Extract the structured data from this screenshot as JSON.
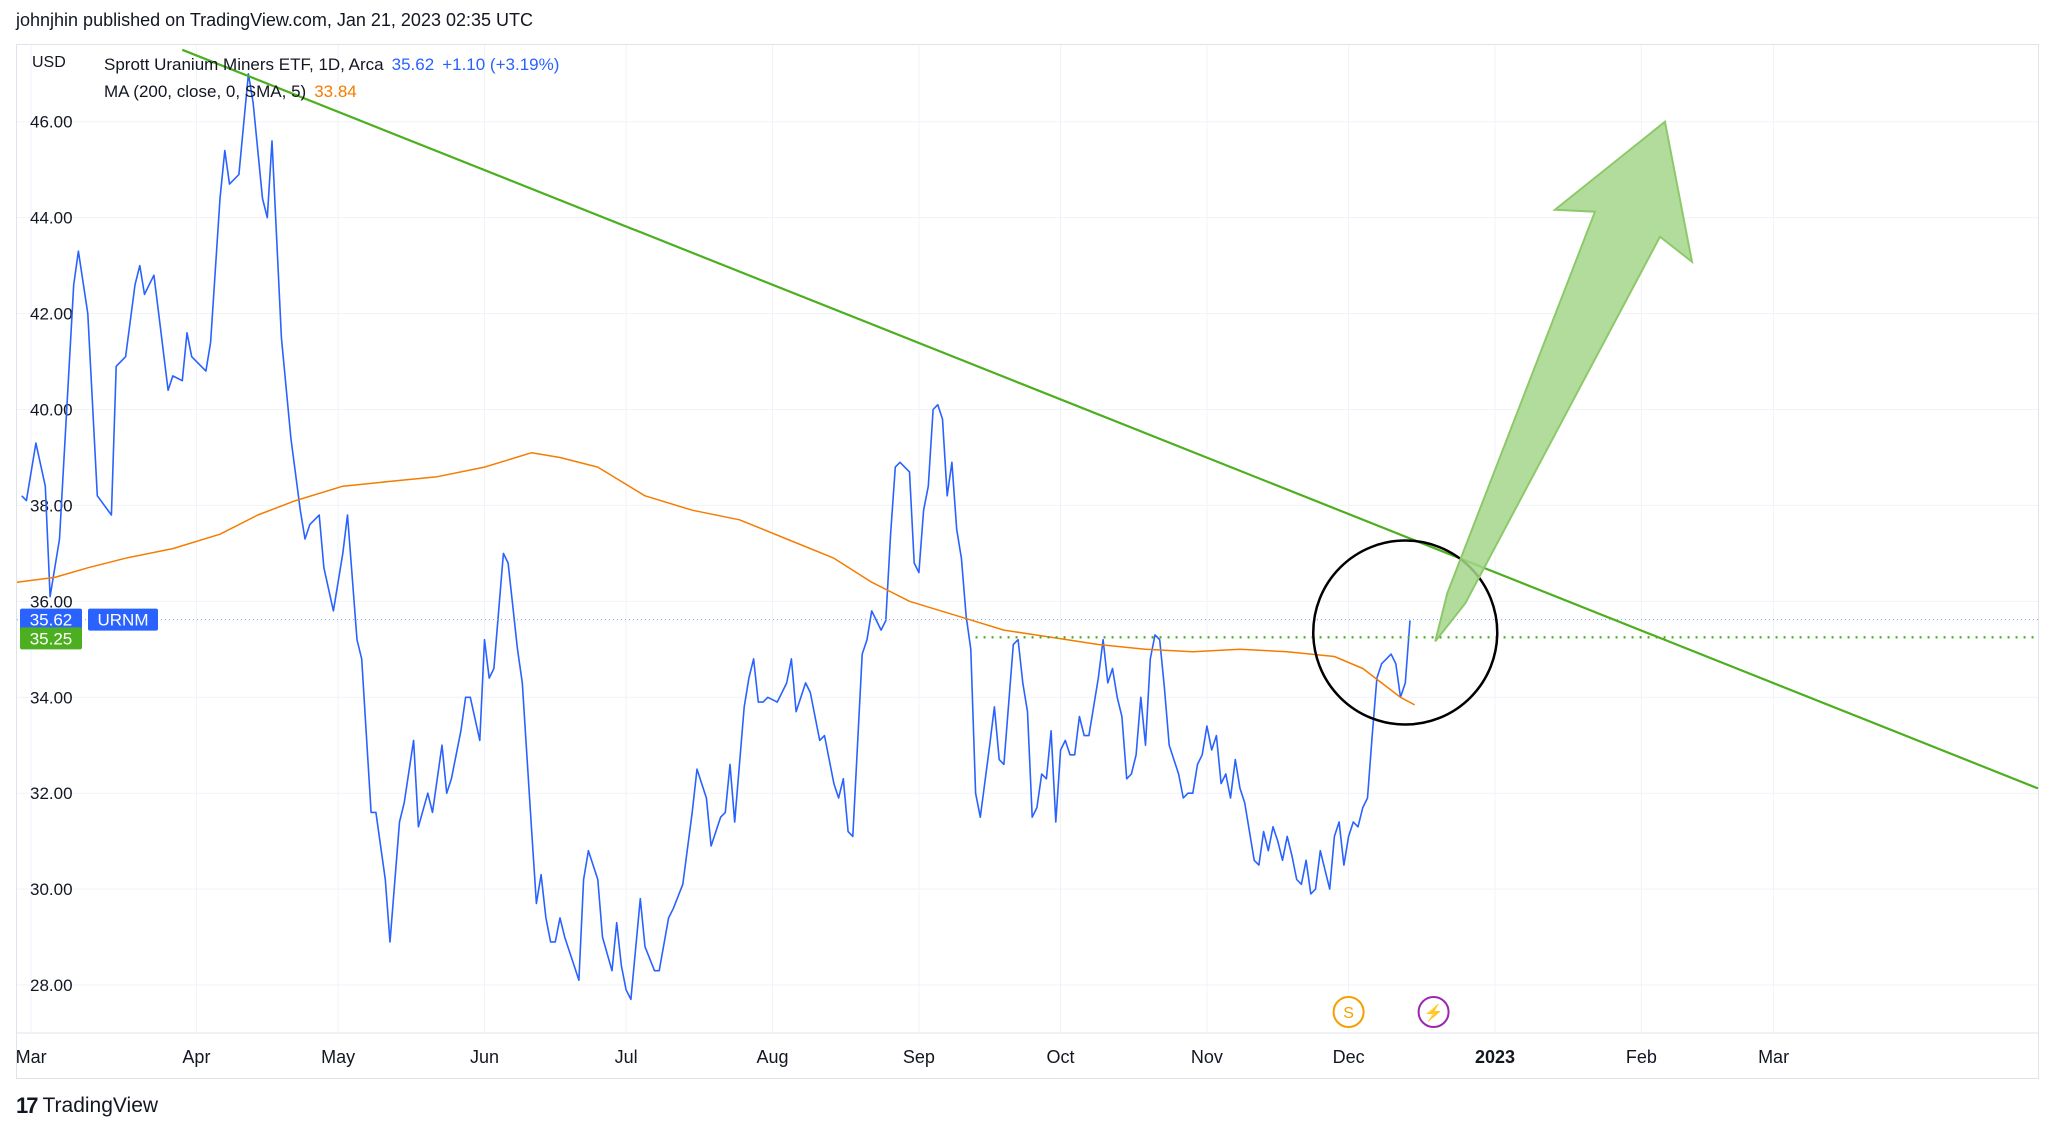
{
  "header": {
    "published_text": "johnjhin published on TradingView.com, Jan 21, 2023 02:35 UTC"
  },
  "footer": {
    "brand": "TradingView",
    "logo_icon": "tradingview-logo-icon"
  },
  "legend": {
    "currency": "USD",
    "symbol_line": "Sprott Uranium Miners ETF, 1D, Arca",
    "last_price": "35.62",
    "change": "+1.10 (+3.19%)",
    "ma_line": "MA (200, close, 0, SMA, 5)",
    "ma_value": "33.84"
  },
  "colors": {
    "price_line": "#2962ff",
    "ma_line": "#f57c00",
    "trendline": "#4caf1f",
    "arrow_fill": "#a5d68a",
    "grid": "#f0f3fa",
    "circle": "#000000",
    "price_badge": "#2962ff",
    "support_badge": "#4caf1f"
  },
  "chart_data": {
    "type": "line",
    "title": "Sprott Uranium Miners ETF, 1D, Arca",
    "xlabel": "",
    "ylabel": "USD",
    "ylim": [
      27.0,
      47.6
    ],
    "x_range_days": [
      -3,
      425
    ],
    "y_ticks": [
      "28.00",
      "30.00",
      "32.00",
      "34.00",
      "36.00",
      "38.00",
      "40.00",
      "42.00",
      "44.00",
      "46.00"
    ],
    "y_tick_values": [
      28,
      30,
      32,
      34,
      36,
      38,
      40,
      42,
      44,
      46
    ],
    "x_ticks": [
      {
        "label": "Mar",
        "day": 0
      },
      {
        "label": "Apr",
        "day": 35
      },
      {
        "label": "May",
        "day": 65
      },
      {
        "label": "Jun",
        "day": 96
      },
      {
        "label": "Jul",
        "day": 126
      },
      {
        "label": "Aug",
        "day": 157
      },
      {
        "label": "Sep",
        "day": 188
      },
      {
        "label": "Oct",
        "day": 218
      },
      {
        "label": "Nov",
        "day": 249
      },
      {
        "label": "Dec",
        "day": 279
      },
      {
        "label": "2023",
        "day": 310
      },
      {
        "label": "Feb",
        "day": 341
      },
      {
        "label": "Mar",
        "day": 369
      }
    ],
    "series": [
      {
        "name": "URNM",
        "color": "#2962ff",
        "points": [
          [
            -2,
            38.2
          ],
          [
            -1,
            38.1
          ],
          [
            1,
            39.3
          ],
          [
            3,
            38.4
          ],
          [
            4,
            36.1
          ],
          [
            6,
            37.3
          ],
          [
            9,
            42.6
          ],
          [
            10,
            43.3
          ],
          [
            12,
            42.0
          ],
          [
            14,
            38.2
          ],
          [
            17,
            37.8
          ],
          [
            18,
            40.9
          ],
          [
            20,
            41.1
          ],
          [
            22,
            42.6
          ],
          [
            23,
            43.0
          ],
          [
            24,
            42.4
          ],
          [
            26,
            42.8
          ],
          [
            27,
            42.0
          ],
          [
            29,
            40.4
          ],
          [
            30,
            40.7
          ],
          [
            32,
            40.6
          ],
          [
            33,
            41.6
          ],
          [
            34,
            41.1
          ],
          [
            37,
            40.8
          ],
          [
            38,
            41.4
          ],
          [
            40,
            44.4
          ],
          [
            41,
            45.4
          ],
          [
            42,
            44.7
          ],
          [
            44,
            44.9
          ],
          [
            46,
            47.0
          ],
          [
            47,
            46.4
          ],
          [
            49,
            44.4
          ],
          [
            50,
            44.0
          ],
          [
            51,
            45.6
          ],
          [
            53,
            41.5
          ],
          [
            55,
            39.4
          ],
          [
            57,
            37.9
          ],
          [
            58,
            37.3
          ],
          [
            59,
            37.6
          ],
          [
            60,
            37.7
          ],
          [
            61,
            37.8
          ],
          [
            62,
            36.7
          ],
          [
            64,
            35.8
          ],
          [
            66,
            37.0
          ],
          [
            67,
            37.8
          ],
          [
            69,
            35.2
          ],
          [
            70,
            34.8
          ],
          [
            72,
            31.6
          ],
          [
            73,
            31.6
          ],
          [
            75,
            30.2
          ],
          [
            76,
            28.9
          ],
          [
            78,
            31.4
          ],
          [
            79,
            31.8
          ],
          [
            81,
            33.1
          ],
          [
            82,
            31.3
          ],
          [
            84,
            32.0
          ],
          [
            85,
            31.6
          ],
          [
            87,
            33.0
          ],
          [
            88,
            32.0
          ],
          [
            89,
            32.3
          ],
          [
            91,
            33.3
          ],
          [
            92,
            34.0
          ],
          [
            93,
            34.0
          ],
          [
            95,
            33.1
          ],
          [
            96,
            35.2
          ],
          [
            97,
            34.4
          ],
          [
            98,
            34.6
          ],
          [
            100,
            37.0
          ],
          [
            101,
            36.8
          ],
          [
            103,
            35.0
          ],
          [
            104,
            34.3
          ],
          [
            106,
            31.2
          ],
          [
            107,
            29.7
          ],
          [
            108,
            30.3
          ],
          [
            109,
            29.4
          ],
          [
            110,
            28.9
          ],
          [
            111,
            28.9
          ],
          [
            112,
            29.4
          ],
          [
            113,
            29.0
          ],
          [
            115,
            28.4
          ],
          [
            116,
            28.1
          ],
          [
            117,
            30.2
          ],
          [
            118,
            30.8
          ],
          [
            120,
            30.2
          ],
          [
            121,
            29.0
          ],
          [
            123,
            28.3
          ],
          [
            124,
            29.3
          ],
          [
            125,
            28.4
          ],
          [
            126,
            27.9
          ],
          [
            127,
            27.7
          ],
          [
            129,
            29.8
          ],
          [
            130,
            28.8
          ],
          [
            132,
            28.3
          ],
          [
            133,
            28.3
          ],
          [
            135,
            29.4
          ],
          [
            136,
            29.6
          ],
          [
            138,
            30.1
          ],
          [
            140,
            31.6
          ],
          [
            141,
            32.5
          ],
          [
            143,
            31.9
          ],
          [
            144,
            30.9
          ],
          [
            146,
            31.5
          ],
          [
            147,
            31.6
          ],
          [
            148,
            32.6
          ],
          [
            149,
            31.4
          ],
          [
            151,
            33.8
          ],
          [
            152,
            34.4
          ],
          [
            153,
            34.8
          ],
          [
            154,
            33.9
          ],
          [
            155,
            33.9
          ],
          [
            156,
            34.0
          ],
          [
            158,
            33.9
          ],
          [
            159,
            34.1
          ],
          [
            160,
            34.3
          ],
          [
            161,
            34.8
          ],
          [
            162,
            33.7
          ],
          [
            164,
            34.3
          ],
          [
            165,
            34.1
          ],
          [
            167,
            33.1
          ],
          [
            168,
            33.2
          ],
          [
            170,
            32.2
          ],
          [
            171,
            31.9
          ],
          [
            172,
            32.3
          ],
          [
            173,
            31.2
          ],
          [
            174,
            31.1
          ],
          [
            176,
            34.9
          ],
          [
            177,
            35.2
          ],
          [
            178,
            35.8
          ],
          [
            180,
            35.4
          ],
          [
            181,
            35.6
          ],
          [
            182,
            37.4
          ],
          [
            183,
            38.8
          ],
          [
            184,
            38.9
          ],
          [
            186,
            38.7
          ],
          [
            187,
            36.8
          ],
          [
            188,
            36.6
          ],
          [
            189,
            37.9
          ],
          [
            190,
            38.4
          ],
          [
            191,
            40.0
          ],
          [
            192,
            40.1
          ],
          [
            193,
            39.8
          ],
          [
            194,
            38.2
          ],
          [
            195,
            38.9
          ],
          [
            196,
            37.5
          ],
          [
            197,
            36.9
          ],
          [
            198,
            35.7
          ],
          [
            199,
            35.0
          ],
          [
            200,
            32.0
          ],
          [
            201,
            31.5
          ],
          [
            203,
            33.0
          ],
          [
            204,
            33.8
          ],
          [
            205,
            32.7
          ],
          [
            206,
            32.6
          ],
          [
            208,
            35.1
          ],
          [
            209,
            35.2
          ],
          [
            210,
            34.3
          ],
          [
            211,
            33.7
          ],
          [
            212,
            31.5
          ],
          [
            213,
            31.7
          ],
          [
            214,
            32.4
          ],
          [
            215,
            32.3
          ],
          [
            216,
            33.3
          ],
          [
            217,
            31.4
          ],
          [
            218,
            32.9
          ],
          [
            219,
            33.1
          ],
          [
            220,
            32.8
          ],
          [
            221,
            32.8
          ],
          [
            222,
            33.6
          ],
          [
            223,
            33.2
          ],
          [
            224,
            33.2
          ],
          [
            225,
            33.8
          ],
          [
            226,
            34.4
          ],
          [
            227,
            35.2
          ],
          [
            228,
            34.3
          ],
          [
            229,
            34.6
          ],
          [
            230,
            34.0
          ],
          [
            231,
            33.6
          ],
          [
            232,
            32.3
          ],
          [
            233,
            32.4
          ],
          [
            234,
            32.8
          ],
          [
            235,
            34.0
          ],
          [
            236,
            33.0
          ],
          [
            237,
            34.8
          ],
          [
            238,
            35.3
          ],
          [
            239,
            35.2
          ],
          [
            240,
            34.2
          ],
          [
            241,
            33.0
          ],
          [
            243,
            32.4
          ],
          [
            244,
            31.9
          ],
          [
            245,
            32.0
          ],
          [
            246,
            32.0
          ],
          [
            247,
            32.6
          ],
          [
            248,
            32.8
          ],
          [
            249,
            33.4
          ],
          [
            250,
            32.9
          ],
          [
            251,
            33.2
          ],
          [
            252,
            32.2
          ],
          [
            253,
            32.4
          ],
          [
            254,
            31.9
          ],
          [
            255,
            32.7
          ],
          [
            256,
            32.1
          ],
          [
            257,
            31.8
          ],
          [
            259,
            30.6
          ],
          [
            260,
            30.5
          ],
          [
            261,
            31.2
          ],
          [
            262,
            30.8
          ],
          [
            263,
            31.3
          ],
          [
            264,
            31.0
          ],
          [
            265,
            30.6
          ],
          [
            266,
            31.1
          ],
          [
            267,
            30.7
          ],
          [
            268,
            30.2
          ],
          [
            269,
            30.1
          ],
          [
            270,
            30.6
          ],
          [
            271,
            29.9
          ],
          [
            272,
            30.0
          ],
          [
            273,
            30.8
          ],
          [
            274,
            30.4
          ],
          [
            275,
            30.0
          ],
          [
            276,
            31.1
          ],
          [
            277,
            31.4
          ],
          [
            278,
            30.5
          ],
          [
            279,
            31.1
          ],
          [
            280,
            31.4
          ],
          [
            281,
            31.3
          ],
          [
            282,
            31.7
          ],
          [
            283,
            31.9
          ],
          [
            284,
            33.2
          ],
          [
            285,
            34.4
          ],
          [
            286,
            34.7
          ],
          [
            287,
            34.8
          ],
          [
            288,
            34.9
          ],
          [
            289,
            34.7
          ],
          [
            290,
            34.0
          ],
          [
            291,
            34.3
          ],
          [
            292,
            35.6
          ]
        ]
      },
      {
        "name": "MA (200, close, 0, SMA, 5)",
        "color": "#f57c00",
        "points": [
          [
            -3,
            36.4
          ],
          [
            5,
            36.5
          ],
          [
            12,
            36.7
          ],
          [
            20,
            36.9
          ],
          [
            30,
            37.1
          ],
          [
            40,
            37.4
          ],
          [
            48,
            37.8
          ],
          [
            56,
            38.1
          ],
          [
            66,
            38.4
          ],
          [
            76,
            38.5
          ],
          [
            86,
            38.6
          ],
          [
            96,
            38.8
          ],
          [
            106,
            39.1
          ],
          [
            112,
            39.0
          ],
          [
            120,
            38.8
          ],
          [
            130,
            38.2
          ],
          [
            140,
            37.9
          ],
          [
            150,
            37.7
          ],
          [
            160,
            37.3
          ],
          [
            170,
            36.9
          ],
          [
            178,
            36.4
          ],
          [
            186,
            36.0
          ],
          [
            196,
            35.7
          ],
          [
            206,
            35.4
          ],
          [
            216,
            35.25
          ],
          [
            226,
            35.1
          ],
          [
            236,
            35.0
          ],
          [
            246,
            34.95
          ],
          [
            256,
            35.0
          ],
          [
            266,
            34.95
          ],
          [
            276,
            34.85
          ],
          [
            282,
            34.6
          ],
          [
            286,
            34.3
          ],
          [
            290,
            34.0
          ],
          [
            293,
            33.84
          ]
        ]
      }
    ],
    "trendline": {
      "from": [
        32,
        47.5
      ],
      "to": [
        425,
        32.1
      ]
    },
    "support_line": {
      "from_day": 200,
      "to_day": 425,
      "value": 35.25
    },
    "last_price_marker": {
      "label": "URNM",
      "value": 35.62
    },
    "support_marker": {
      "value": 35.25
    },
    "annotation_circle": {
      "center_day": 291,
      "center_value": 35.35,
      "note": "breakout highlight"
    },
    "arrow": {
      "tail_day": 291,
      "tail_value": 36,
      "head_day": 346,
      "head_value": 46,
      "direction": "up"
    },
    "event_markers": [
      {
        "label": "S",
        "type": "dividend",
        "day": 279,
        "color": "#f59f00"
      },
      {
        "label": "⚡",
        "type": "earnings",
        "day": 297,
        "color": "#9c27b0"
      }
    ]
  }
}
